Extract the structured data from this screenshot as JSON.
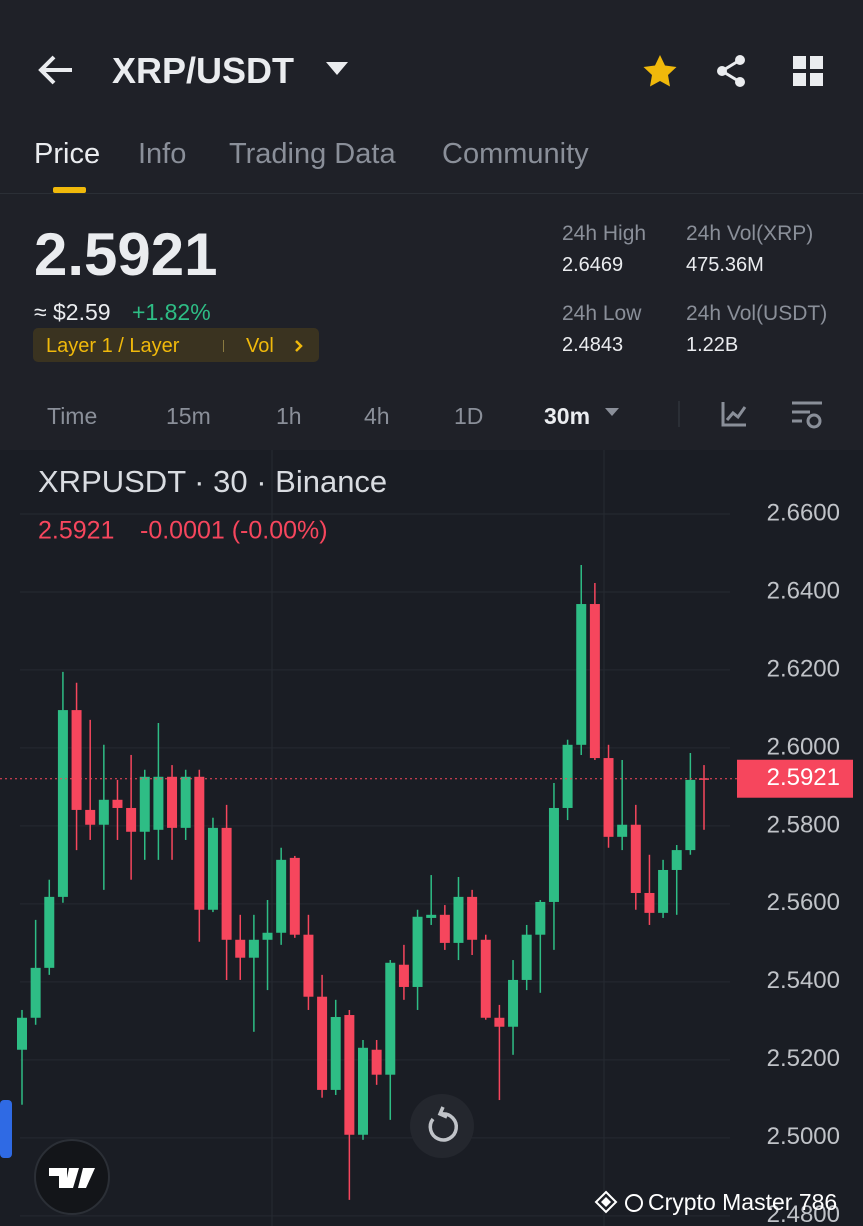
{
  "header": {
    "pair": "XRP/USDT"
  },
  "tabs": [
    "Price",
    "Info",
    "Trading Data",
    "Community"
  ],
  "price": {
    "last": "2.5921",
    "fiat": "≈ $2.59",
    "change": "+1.82%",
    "tags": [
      "Layer 1 / Layer",
      "Vol"
    ]
  },
  "stats": [
    {
      "label": "24h High",
      "value": "2.6469"
    },
    {
      "label": "24h Vol(XRP)",
      "value": "475.36M"
    },
    {
      "label": "24h Low",
      "value": "2.4843"
    },
    {
      "label": "24h Vol(USDT)",
      "value": "1.22B"
    }
  ],
  "intervals": [
    "Time",
    "15m",
    "1h",
    "4h",
    "1D",
    "30m"
  ],
  "chart_data": {
    "type": "candlestick",
    "title": "XRPUSDT · 30 · Binance",
    "legend_price": "2.5921",
    "legend_change": "-0.0001 (-0.00%)",
    "last_price": 2.5921,
    "up_color": "#2ebd85",
    "down_color": "#f6465d",
    "ylim": [
      2.4774,
      2.6764
    ],
    "yticks": [
      {
        "value": 2.66,
        "label": "2.6600"
      },
      {
        "value": 2.64,
        "label": "2.6400"
      },
      {
        "value": 2.62,
        "label": "2.6200"
      },
      {
        "value": 2.6,
        "label": "2.6000"
      },
      {
        "value": 2.58,
        "label": "2.5800"
      },
      {
        "value": 2.56,
        "label": "2.5600"
      },
      {
        "value": 2.54,
        "label": "2.5400"
      },
      {
        "value": 2.52,
        "label": "2.5200"
      },
      {
        "value": 2.5,
        "label": "2.5000"
      },
      {
        "value": 2.48,
        "label": "2.4800"
      }
    ],
    "open": [
      2.5226,
      2.5308,
      2.5436,
      2.5618,
      2.6097,
      2.5841,
      2.5803,
      2.5867,
      2.5846,
      2.5785,
      2.579,
      2.5926,
      2.5795,
      2.5926,
      2.5585,
      2.5795,
      2.5508,
      2.5462,
      2.5508,
      2.5526,
      2.5718,
      2.5521,
      2.5362,
      2.5123,
      2.5315,
      2.5008,
      2.5226,
      2.5162,
      2.5444,
      2.5387,
      2.5564,
      2.5572,
      2.55,
      2.5618,
      2.5508,
      2.5308,
      2.5285,
      2.5405,
      2.5521,
      2.5605,
      2.5846,
      2.6008,
      2.6369,
      2.5974,
      2.5772,
      2.5803,
      2.5628,
      2.5577,
      2.5687,
      2.5738,
      2.5922
    ],
    "close": [
      2.5308,
      2.5436,
      2.5618,
      2.6097,
      2.5841,
      2.5803,
      2.5867,
      2.5846,
      2.5785,
      2.5926,
      2.5926,
      2.5795,
      2.5926,
      2.5585,
      2.5795,
      2.5508,
      2.5462,
      2.5508,
      2.5526,
      2.5713,
      2.5521,
      2.5362,
      2.5123,
      2.531,
      2.5008,
      2.5231,
      2.5162,
      2.5449,
      2.5387,
      2.5567,
      2.5572,
      2.55,
      2.5618,
      2.5508,
      2.5308,
      2.5285,
      2.5405,
      2.5521,
      2.5605,
      2.5846,
      2.6008,
      2.6369,
      2.5974,
      2.5772,
      2.5803,
      2.5628,
      2.5577,
      2.5687,
      2.5738,
      2.5918,
      2.5921
    ],
    "high": [
      2.5328,
      2.5559,
      2.5662,
      2.6195,
      2.6167,
      2.6072,
      2.6008,
      2.5918,
      2.5982,
      2.5944,
      2.6064,
      2.5956,
      2.5944,
      2.5944,
      2.5821,
      2.5854,
      2.5572,
      2.5572,
      2.561,
      2.5744,
      2.5723,
      2.5572,
      2.5418,
      2.5354,
      2.5328,
      2.5251,
      2.5251,
      2.5456,
      2.5495,
      2.5585,
      2.5674,
      2.5597,
      2.5669,
      2.5636,
      2.5521,
      2.5341,
      2.5456,
      2.5546,
      2.561,
      2.591,
      2.6021,
      2.6469,
      2.6423,
      2.6008,
      2.5969,
      2.5854,
      2.5726,
      2.5713,
      2.5751,
      2.5987,
      2.5956
    ],
    "low": [
      2.5085,
      2.529,
      2.5418,
      2.5603,
      2.5738,
      2.5764,
      2.5636,
      2.5764,
      2.5662,
      2.5713,
      2.5713,
      2.5713,
      2.5764,
      2.5503,
      2.5579,
      2.5405,
      2.5405,
      2.5272,
      2.5379,
      2.5495,
      2.5513,
      2.5328,
      2.5103,
      2.511,
      2.4841,
      2.4995,
      2.5136,
      2.5046,
      2.5354,
      2.5328,
      2.5546,
      2.5482,
      2.5456,
      2.5469,
      2.5303,
      2.5097,
      2.5213,
      2.5379,
      2.5372,
      2.5482,
      2.5815,
      2.5982,
      2.5969,
      2.5744,
      2.5738,
      2.5585,
      2.5546,
      2.5564,
      2.5572,
      2.5726,
      2.579
    ]
  },
  "watermark": "Crypto Master 786"
}
